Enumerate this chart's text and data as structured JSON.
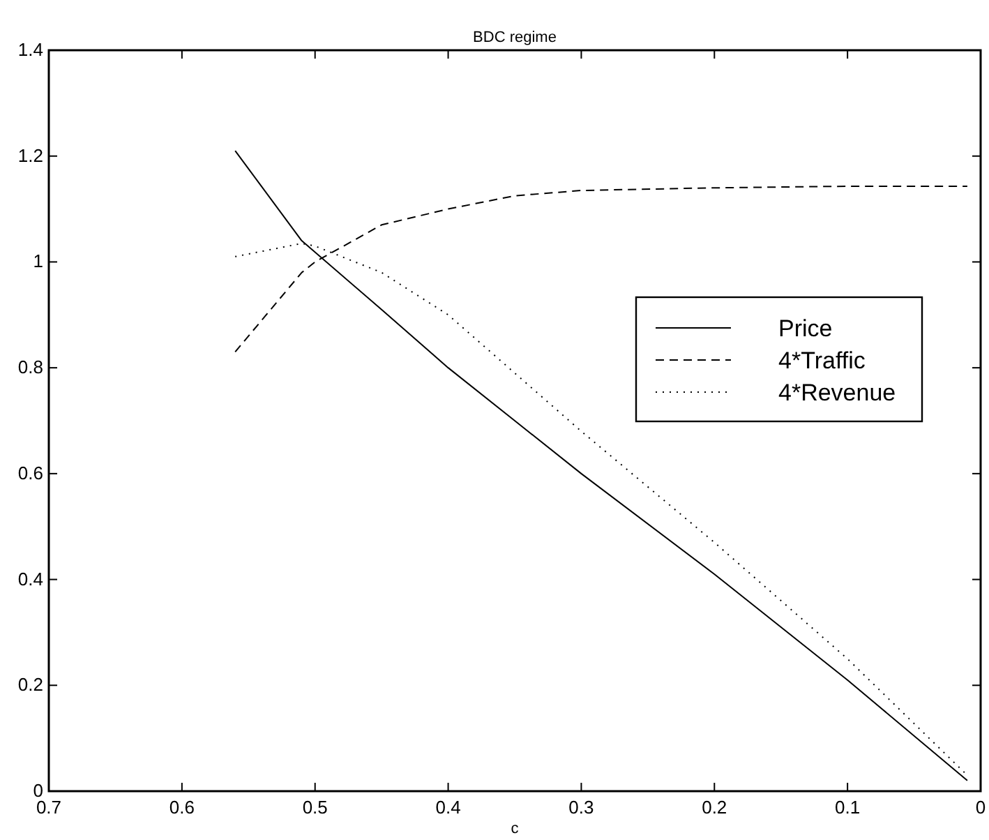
{
  "chart_data": {
    "type": "line",
    "title": "BDC regime",
    "xlabel": "c",
    "xlim": [
      0.7,
      0
    ],
    "xticks": [
      {
        "value": 0.7,
        "label": "0.7"
      },
      {
        "value": 0.6,
        "label": "0.6"
      },
      {
        "value": 0.5,
        "label": "0.5"
      },
      {
        "value": 0.4,
        "label": "0.4"
      },
      {
        "value": 0.3,
        "label": "0.3"
      },
      {
        "value": 0.2,
        "label": "0.2"
      },
      {
        "value": 0.1,
        "label": "0.1"
      },
      0
    ],
    "ylim": [
      0,
      1.4
    ],
    "yticks": [
      0,
      {
        "value": 0.2,
        "label": "0.2"
      },
      {
        "value": 0.4,
        "label": "0.4"
      },
      {
        "value": 0.6,
        "label": "0.6"
      },
      {
        "value": 0.8,
        "label": "0.8"
      },
      1,
      {
        "value": 1.2,
        "label": "1.2"
      },
      {
        "value": 1.4,
        "label": "1.4"
      }
    ],
    "grid": false,
    "legend": "right",
    "marker": "none",
    "series": [
      {
        "name": "Price",
        "color": "#000000",
        "line_style": "solid",
        "x": [
          0.56,
          0.51,
          0.45,
          0.4,
          0.35,
          0.3,
          0.2,
          0.1,
          0.01
        ],
        "values": [
          1.21,
          1.04,
          0.91,
          0.8,
          0.7,
          0.6,
          0.41,
          0.21,
          0.02
        ]
      },
      {
        "name": "4*Traffic",
        "color": "#000000",
        "line_style": "dashed",
        "x": [
          0.56,
          0.51,
          0.5,
          0.45,
          0.4,
          0.35,
          0.3,
          0.2,
          0.1,
          0.01
        ],
        "values": [
          0.83,
          0.98,
          1.0,
          1.07,
          1.1,
          1.125,
          1.135,
          1.14,
          1.143,
          1.143
        ]
      },
      {
        "name": "4*Revenue",
        "color": "#000000",
        "line_style": "dotted",
        "x": [
          0.56,
          0.51,
          0.5,
          0.45,
          0.4,
          0.35,
          0.3,
          0.2,
          0.1,
          0.01
        ],
        "values": [
          1.01,
          1.035,
          1.03,
          0.98,
          0.9,
          0.79,
          0.68,
          0.47,
          0.25,
          0.03
        ]
      }
    ]
  }
}
